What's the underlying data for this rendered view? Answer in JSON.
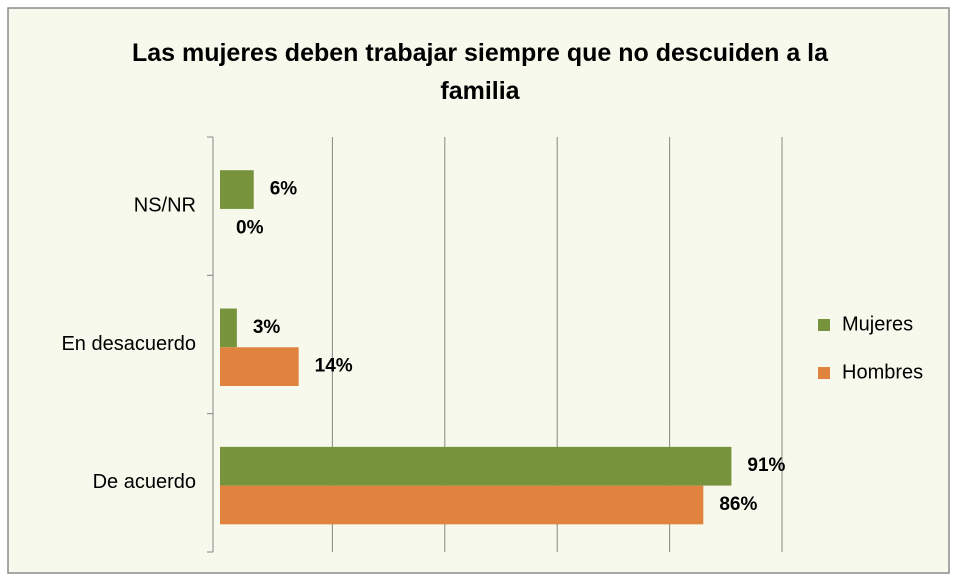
{
  "chart_data": {
    "type": "bar",
    "orientation": "horizontal",
    "title": "Las mujeres deben trabajar siempre que no descuiden a la familia",
    "categories": [
      "NS/NR",
      "En desacuerdo",
      "De acuerdo"
    ],
    "series": [
      {
        "name": "Mujeres",
        "color": "#77933c",
        "values": [
          6,
          3,
          91
        ],
        "value_labels": [
          "6%",
          "3%",
          "91%"
        ]
      },
      {
        "name": "Hombres",
        "color": "#e0833f",
        "values": [
          0,
          14,
          86
        ],
        "value_labels": [
          "0%",
          "14%",
          "86%"
        ]
      }
    ],
    "xlim": [
      0,
      100
    ],
    "xticks": [
      0,
      20,
      40,
      60,
      80,
      100
    ],
    "grid": true,
    "legend": "right"
  }
}
